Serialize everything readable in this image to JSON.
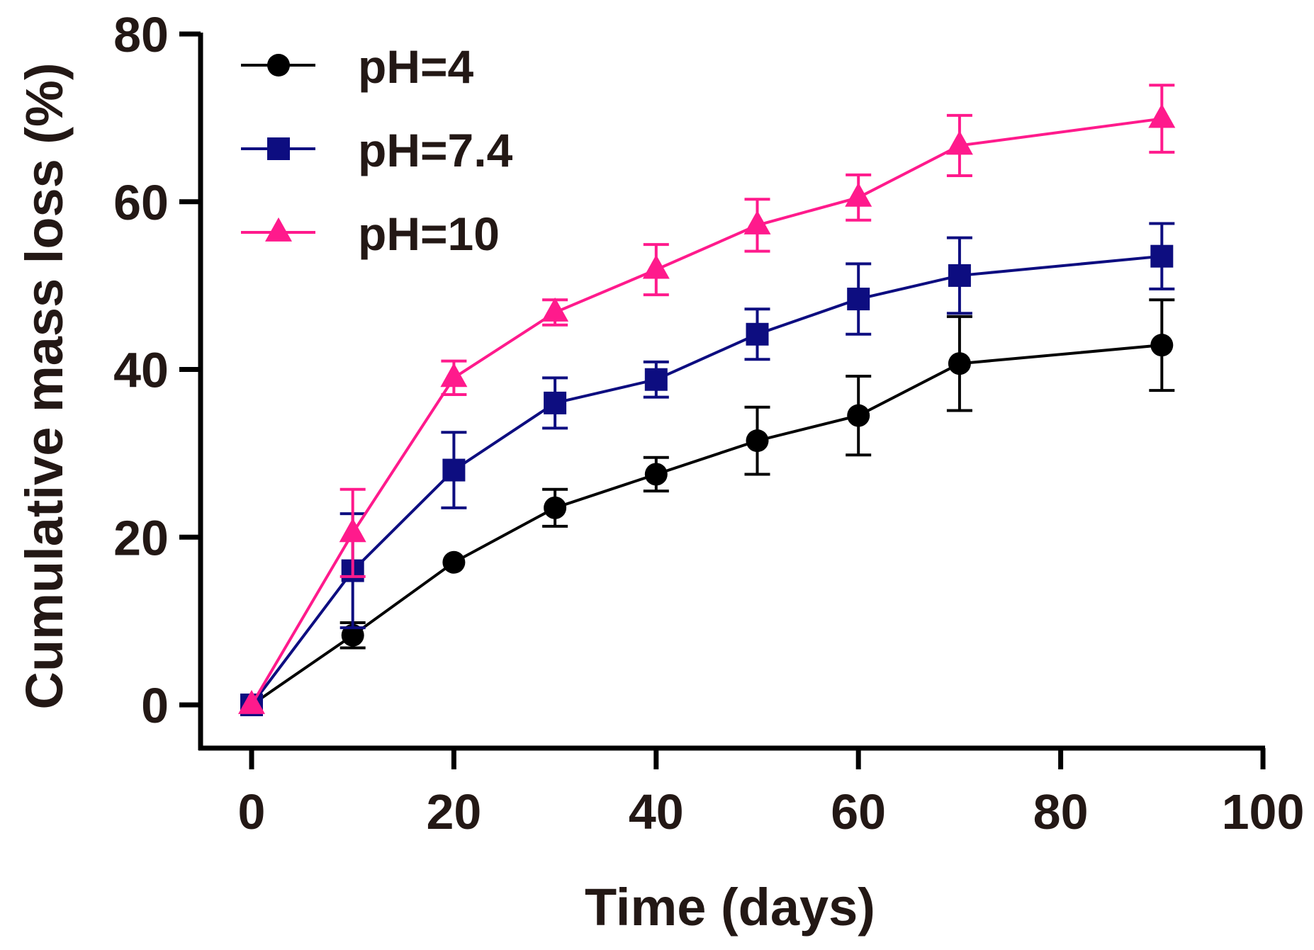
{
  "chart_data": {
    "type": "line",
    "title": "",
    "xlabel": "Time (days)",
    "ylabel": "Cumulative mass loss (%)",
    "xlim": [
      0,
      100
    ],
    "ylim": [
      0,
      80
    ],
    "xticks": [
      0,
      20,
      40,
      60,
      80,
      100
    ],
    "yticks": [
      0,
      20,
      40,
      60,
      80
    ],
    "grid": false,
    "legend_position": "top-left",
    "x": [
      0,
      10,
      20,
      30,
      40,
      50,
      60,
      70,
      90
    ],
    "series": [
      {
        "name": "pH=4",
        "color": "#000000",
        "marker": "circle",
        "values": [
          0,
          8.3,
          17,
          23.5,
          27.5,
          31.5,
          34.5,
          40.7,
          42.9
        ],
        "errors": [
          0,
          1.5,
          0,
          2.2,
          2.0,
          4.0,
          4.7,
          5.6,
          5.4
        ]
      },
      {
        "name": "pH=7.4",
        "color": "#0d0d80",
        "marker": "square",
        "values": [
          0,
          16,
          28,
          36,
          38.8,
          44.2,
          48.4,
          51.2,
          53.5
        ],
        "errors": [
          0,
          6.8,
          4.5,
          3.0,
          2.1,
          3.0,
          4.2,
          4.5,
          3.9
        ]
      },
      {
        "name": "pH=10",
        "color": "#ff1a8c",
        "marker": "triangle",
        "values": [
          0,
          20.5,
          39,
          46.8,
          51.9,
          57.2,
          60.5,
          66.7,
          69.9
        ],
        "errors": [
          0,
          5.2,
          2.0,
          1.5,
          3.0,
          3.1,
          2.7,
          3.6,
          4.0
        ]
      }
    ]
  }
}
